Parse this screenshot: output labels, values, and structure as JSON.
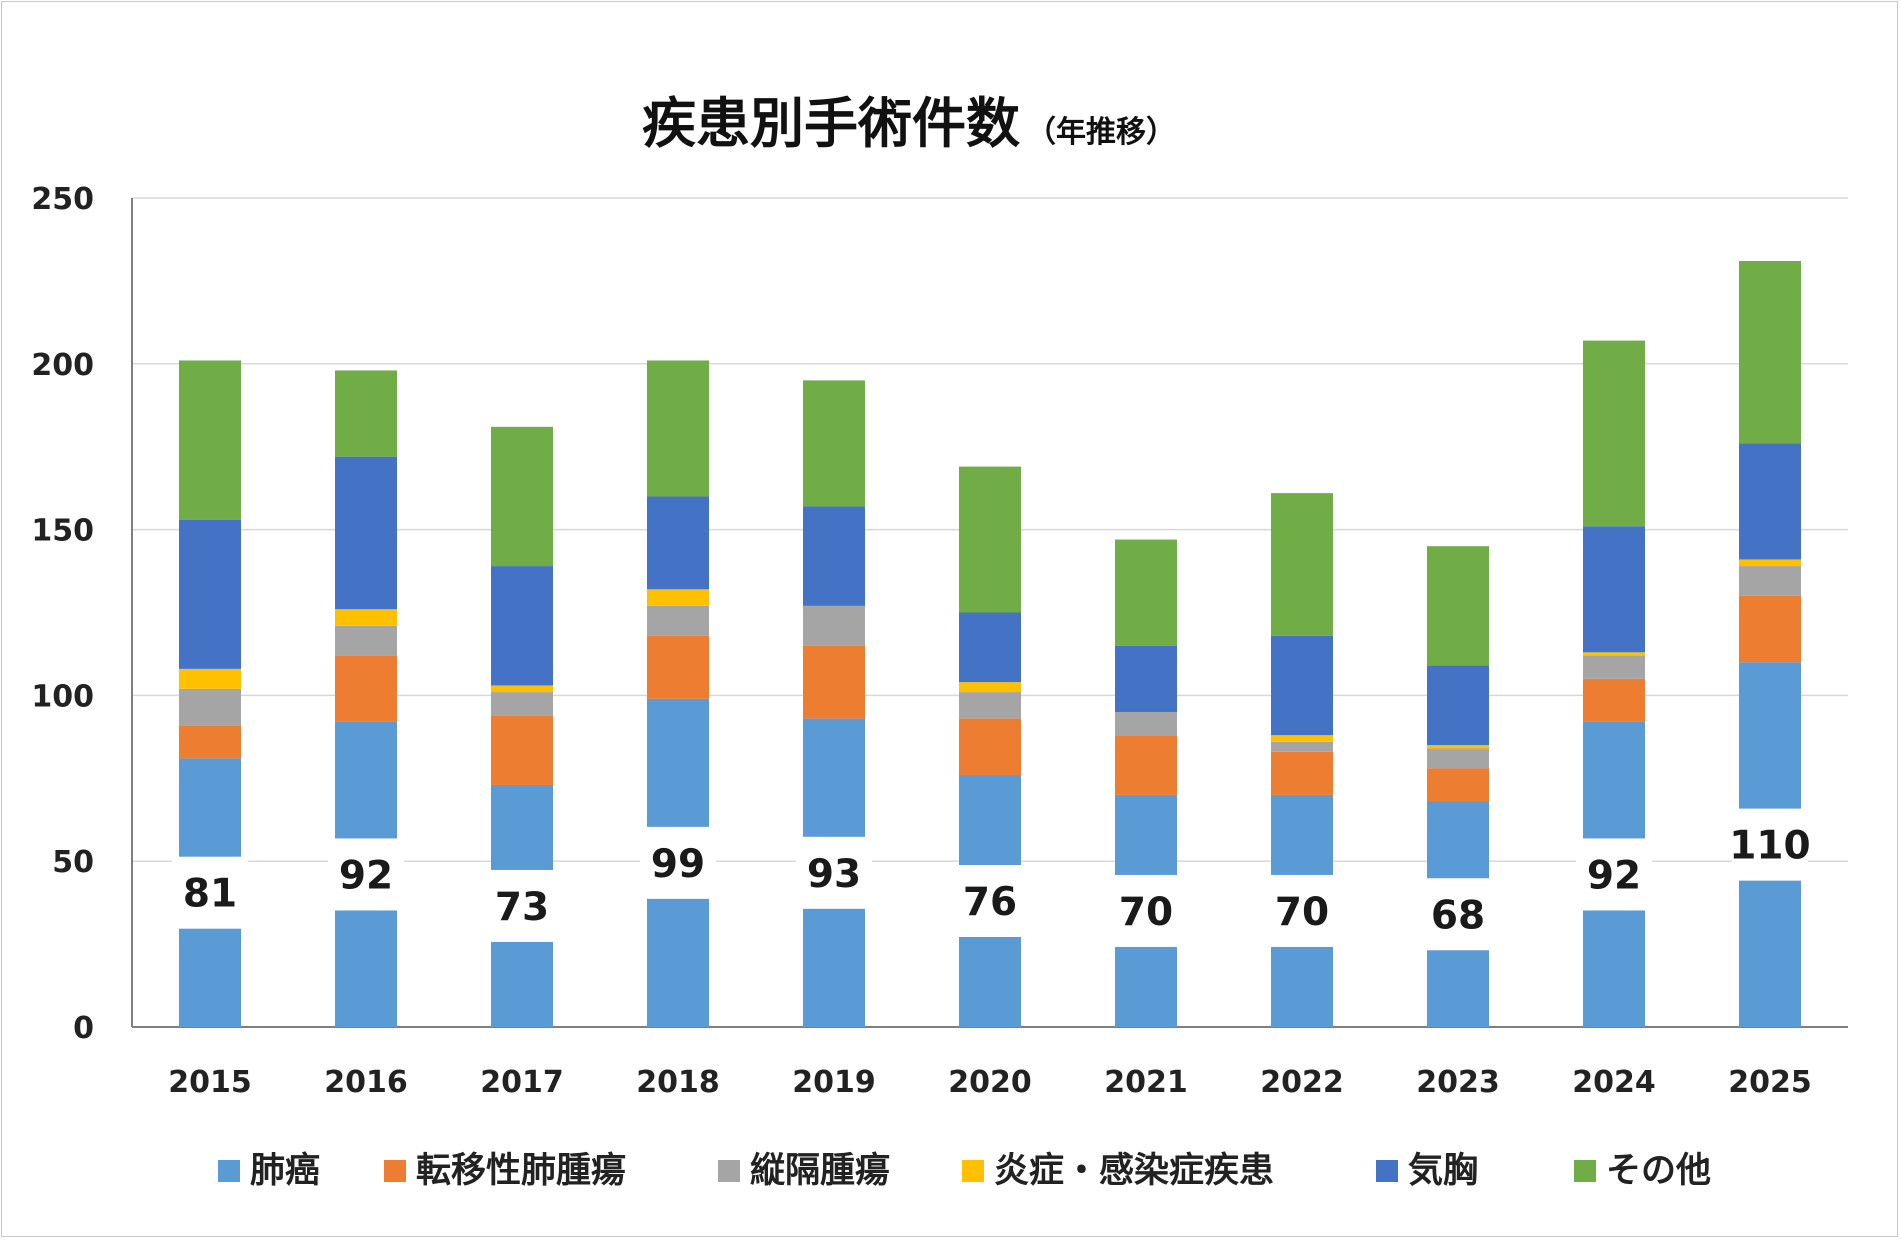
{
  "chart_data": {
    "type": "bar",
    "stacked": true,
    "title": "疾患別手術件数",
    "subtitle": "（年推移）",
    "xlabel": "",
    "ylabel": "",
    "ylim": [
      0,
      250
    ],
    "yticks": [
      0,
      50,
      100,
      150,
      200,
      250
    ],
    "grid": true,
    "legend_position": "bottom",
    "categories": [
      "2015",
      "2016",
      "2017",
      "2018",
      "2019",
      "2020",
      "2021",
      "2022",
      "2023",
      "2024",
      "2025"
    ],
    "series": [
      {
        "name": "肺癌",
        "color": "#5b9bd5",
        "values": [
          81,
          92,
          73,
          99,
          93,
          76,
          70,
          70,
          68,
          92,
          110
        ]
      },
      {
        "name": "転移性肺腫瘍",
        "color": "#ed7d31",
        "values": [
          10,
          20,
          21,
          19,
          22,
          17,
          18,
          13,
          10,
          13,
          20
        ]
      },
      {
        "name": "縦隔腫瘍",
        "color": "#a5a5a5",
        "values": [
          11,
          9,
          7,
          9,
          12,
          8,
          7,
          3,
          6,
          7,
          9
        ]
      },
      {
        "name": "炎症・感染症疾患",
        "color": "#ffc000",
        "values": [
          6,
          5,
          2,
          5,
          0,
          3,
          0,
          2,
          1,
          1,
          2
        ]
      },
      {
        "name": "気胸",
        "color": "#4472c4",
        "values": [
          45,
          46,
          36,
          28,
          30,
          21,
          20,
          30,
          24,
          38,
          35
        ]
      },
      {
        "name": "その他",
        "color": "#70ad47",
        "values": [
          48,
          26,
          42,
          41,
          38,
          44,
          32,
          43,
          36,
          56,
          55
        ]
      }
    ],
    "data_labels": {
      "series": "肺癌",
      "values": [
        "81",
        "92",
        "73",
        "99",
        "93",
        "76",
        "70",
        "70",
        "68",
        "92",
        "110"
      ]
    }
  }
}
